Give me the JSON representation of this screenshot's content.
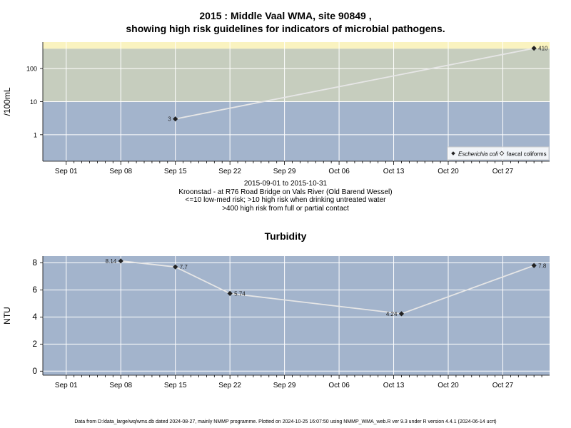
{
  "title_line1": "2015 : Middle Vaal WMA, site 90849 ,",
  "title_line2": "showing high risk guidelines for indicators of microbial pathogens.",
  "caption": {
    "line1": "2015-09-01 to 2015-10-31",
    "line2": "Kroonstad - at R76 Road Bridge on Vals River (Old Barend Wessel)",
    "line3": "<=10 low-med risk; >10 high risk when drinking untreated water",
    "line4": ">400 high risk from full or partial contact"
  },
  "footer": "Data from D:/data_large/wq/wms.db dated 2024-08-27, mainly NMMP programme. Plotted on 2024-10-25 16:07:50 using NMMP_WMA_web.R ver 9.3 under R version 4.4.1 (2024-06-14 ucrt)",
  "colors": {
    "low_band": "#a3b4cc",
    "mid_band": "#c6cdbe",
    "high_band": "#faf3c0",
    "line": "#e6e6e6",
    "point": "#222222",
    "grid": "#ffffff"
  },
  "chart_data": [
    {
      "type": "line",
      "ylabel": "/100mL",
      "yscale": "log",
      "yticks": [
        1,
        10,
        100
      ],
      "xticks": [
        "Sep 01",
        "Sep 08",
        "Sep 15",
        "Sep 22",
        "Sep 29",
        "Oct 06",
        "Oct 13",
        "Oct 20",
        "Oct 27"
      ],
      "xrange": [
        "2015-08-29",
        "2015-11-02"
      ],
      "grid": true,
      "bands": [
        {
          "from": 0,
          "to": 10,
          "color": "low_band"
        },
        {
          "from": 10,
          "to": 400,
          "color": "mid_band"
        },
        {
          "from": 400,
          "to": 1000,
          "color": "high_band"
        }
      ],
      "series": [
        {
          "name": "Escherichia coli",
          "marker": "filled-diamond",
          "points": [
            {
              "x": "2015-09-15",
              "y": 3,
              "label": "3"
            },
            {
              "x": "2015-10-31",
              "y": 410,
              "label": "410"
            }
          ]
        }
      ],
      "legend": {
        "position": "bottom-right",
        "entries": [
          "Escherichia coli",
          "faecal coliforms"
        ]
      }
    },
    {
      "type": "line",
      "title": "Turbidity",
      "ylabel": "NTU",
      "ylim": [
        -0.3,
        8.5
      ],
      "yticks": [
        0,
        2,
        4,
        6,
        8
      ],
      "xticks": [
        "Sep 01",
        "Sep 08",
        "Sep 15",
        "Sep 22",
        "Sep 29",
        "Oct 06",
        "Oct 13",
        "Oct 20",
        "Oct 27"
      ],
      "xrange": [
        "2015-08-29",
        "2015-11-02"
      ],
      "grid": true,
      "series": [
        {
          "name": "",
          "marker": "filled-diamond",
          "points": [
            {
              "x": "2015-09-08",
              "y": 8.14,
              "label": "8.14",
              "label_side": "left"
            },
            {
              "x": "2015-09-15",
              "y": 7.7,
              "label": "7.7",
              "label_side": "right"
            },
            {
              "x": "2015-09-22",
              "y": 5.74,
              "label": "5.74",
              "label_side": "right"
            },
            {
              "x": "2015-10-14",
              "y": 4.24,
              "label": "4.24",
              "label_side": "left"
            },
            {
              "x": "2015-10-31",
              "y": 7.8,
              "label": "7.8",
              "label_side": "right"
            }
          ]
        }
      ]
    }
  ]
}
